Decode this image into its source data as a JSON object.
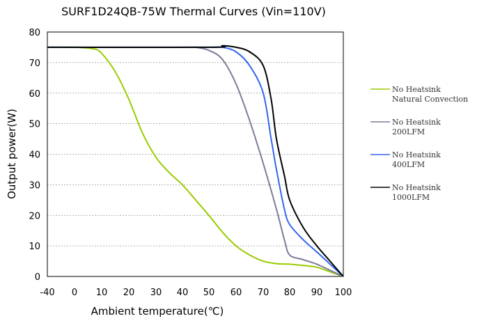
{
  "chart_data": {
    "type": "line",
    "title": "SURF1D24QB-75W Thermal Curves (Vin=110V)",
    "xlabel": "Ambient temperature(℃)",
    "ylabel": "Output power(W)",
    "xlim": [
      -40,
      100
    ],
    "ylim": [
      0,
      80
    ],
    "xticks": [
      "-40",
      "0",
      "10",
      "20",
      "30",
      "40",
      "50",
      "60",
      "70",
      "80",
      "90",
      "100"
    ],
    "yticks": [
      "0",
      "10",
      "20",
      "30",
      "40",
      "50",
      "60",
      "70",
      "80"
    ],
    "grid": true,
    "legend_position": "right",
    "series": [
      {
        "name_lines": [
          "No Heatsink",
          "Natural Convection"
        ],
        "color": "#99cc00",
        "points": [
          [
            -40,
            75
          ],
          [
            0,
            75
          ],
          [
            7,
            74.5
          ],
          [
            10,
            73
          ],
          [
            15,
            67
          ],
          [
            20,
            58
          ],
          [
            25,
            47
          ],
          [
            30,
            39
          ],
          [
            35,
            34
          ],
          [
            40,
            30
          ],
          [
            45,
            25
          ],
          [
            50,
            20
          ],
          [
            55,
            14.5
          ],
          [
            60,
            10
          ],
          [
            65,
            7
          ],
          [
            70,
            5
          ],
          [
            75,
            4.2
          ],
          [
            80,
            4
          ],
          [
            85,
            3.6
          ],
          [
            90,
            3
          ],
          [
            95,
            1.5
          ],
          [
            100,
            0
          ]
        ]
      },
      {
        "name_lines": [
          "No Heatsink",
          "200LFM"
        ],
        "color": "#7b7b9b",
        "points": [
          [
            -40,
            75
          ],
          [
            40,
            75
          ],
          [
            45,
            75
          ],
          [
            50,
            74
          ],
          [
            55,
            71
          ],
          [
            60,
            63
          ],
          [
            65,
            51
          ],
          [
            70,
            37
          ],
          [
            75,
            22
          ],
          [
            78,
            12
          ],
          [
            80,
            7
          ],
          [
            85,
            5.5
          ],
          [
            90,
            4
          ],
          [
            95,
            2
          ],
          [
            100,
            0
          ]
        ]
      },
      {
        "name_lines": [
          "No Heatsink",
          "400LFM"
        ],
        "color": "#3366ee",
        "points": [
          [
            -40,
            75
          ],
          [
            50,
            75
          ],
          [
            55,
            75
          ],
          [
            60,
            73.5
          ],
          [
            65,
            69
          ],
          [
            70,
            60
          ],
          [
            73,
            45
          ],
          [
            75,
            35
          ],
          [
            78,
            22
          ],
          [
            80,
            17
          ],
          [
            85,
            12
          ],
          [
            90,
            8
          ],
          [
            95,
            4
          ],
          [
            100,
            0
          ]
        ]
      },
      {
        "name_lines": [
          "No Heatsink",
          "1000LFM"
        ],
        "color": "#000000",
        "points": [
          [
            -40,
            75
          ],
          [
            50,
            75
          ],
          [
            55,
            75.5
          ],
          [
            60,
            75
          ],
          [
            65,
            73.5
          ],
          [
            70,
            69
          ],
          [
            73,
            58
          ],
          [
            75,
            45
          ],
          [
            78,
            33
          ],
          [
            80,
            25
          ],
          [
            85,
            16
          ],
          [
            90,
            10
          ],
          [
            95,
            5
          ],
          [
            100,
            0
          ]
        ]
      }
    ]
  }
}
